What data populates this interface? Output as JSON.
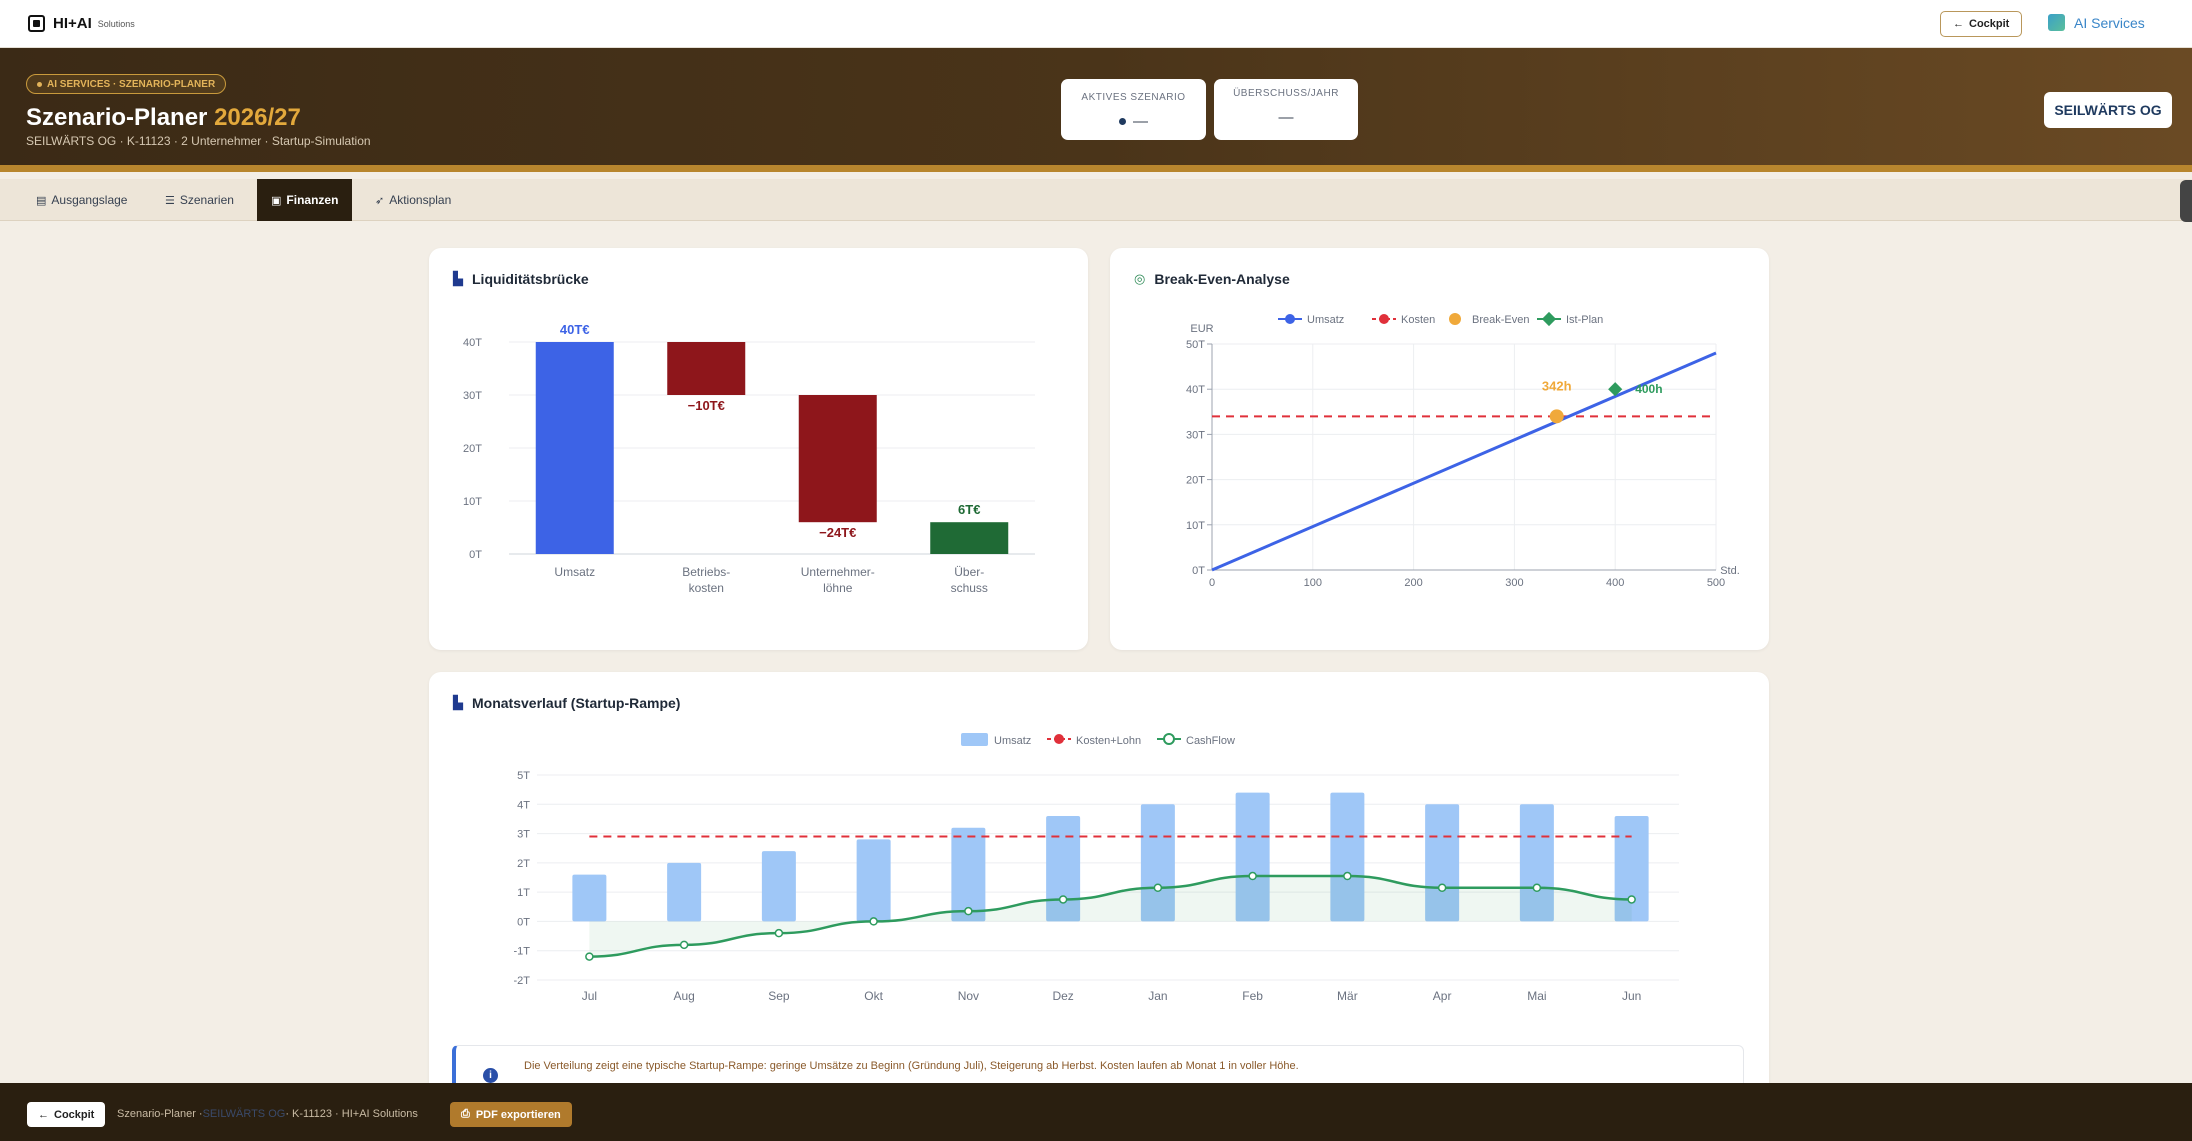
{
  "topbar": {
    "logo_text": "HI+AI",
    "logo_sub": "Solutions",
    "cockpit_label": "Cockpit",
    "ai_services_label": "AI Services"
  },
  "hero": {
    "badge": "AI SERVICES · SZENARIO-PLANER",
    "title": "Szenario-Planer",
    "year": "2026/27",
    "subtitle": "SEILWÄRTS OG · K-11123 · 2 Unternehmer · Startup-Simulation",
    "kpi_active_label": "AKTIVES SZENARIO",
    "kpi_active_value": "—",
    "kpi_surplus_label": "ÜBERSCHUSS/JAHR",
    "kpi_surplus_value": "—",
    "company_button": "SEILWÄRTS OG"
  },
  "tabs": [
    {
      "label": "Ausgangslage",
      "icon": "clipboard-icon"
    },
    {
      "label": "Szenarien",
      "icon": "sliders-icon"
    },
    {
      "label": "Finanzen",
      "icon": "wallet-icon"
    },
    {
      "label": "Aktionsplan",
      "icon": "rocket-icon"
    }
  ],
  "colors": {
    "blue": "#3d63e6",
    "red": "#8e161b",
    "green": "#1f6a35",
    "orange": "#f0a93a",
    "line_green": "#2e9b5e",
    "dashed_red": "#e0303a",
    "bar_light_blue": "#9fc7f7"
  },
  "chart_data": [
    {
      "type": "bar",
      "title": "Liquiditätsbrücke",
      "categories": [
        [
          "Umsatz"
        ],
        [
          "Betriebs-",
          "kosten"
        ],
        [
          "Unternehmer-",
          "löhne"
        ],
        [
          "Über-",
          "schuss"
        ]
      ],
      "waterfall": [
        {
          "start": 0,
          "end": 40,
          "label": "40T€"
        },
        {
          "start": 40,
          "end": 30,
          "label": "−10T€"
        },
        {
          "start": 30,
          "end": 6,
          "label": "−24T€"
        },
        {
          "start": 0,
          "end": 6,
          "label": "6T€"
        }
      ],
      "yticks": [
        "0T",
        "10T",
        "20T",
        "30T",
        "40T"
      ],
      "ylim": [
        0,
        40
      ]
    },
    {
      "type": "line",
      "title": "Break-Even-Analyse",
      "legend": [
        "Umsatz",
        "Kosten",
        "Break-Even",
        "Ist-Plan"
      ],
      "xlabel": "Std.",
      "ylabel": "EUR",
      "xticks": [
        "0",
        "100",
        "200",
        "300",
        "400",
        "500"
      ],
      "yticks": [
        "0T",
        "10T",
        "20T",
        "30T",
        "40T",
        "50T"
      ],
      "xlim": [
        0,
        500
      ],
      "ylim": [
        0,
        50
      ],
      "umsatz_line": [
        [
          0,
          0
        ],
        [
          500,
          48
        ]
      ],
      "kosten_level": 34,
      "break_even": {
        "x": 342,
        "y": 34,
        "label": "342h"
      },
      "ist_plan": {
        "x": 400,
        "y": 40,
        "label": "400h"
      }
    },
    {
      "type": "bar",
      "title": "Monatsverlauf (Startup-Rampe)",
      "legend": [
        "Umsatz",
        "Kosten+Lohn",
        "CashFlow"
      ],
      "categories": [
        "Jul",
        "Aug",
        "Sep",
        "Okt",
        "Nov",
        "Dez",
        "Jan",
        "Feb",
        "Mär",
        "Apr",
        "Mai",
        "Jun"
      ],
      "series": [
        {
          "name": "Umsatz",
          "values": [
            1.6,
            2.0,
            2.4,
            2.8,
            3.2,
            3.6,
            4.0,
            4.4,
            4.4,
            4.0,
            4.0,
            3.6
          ]
        },
        {
          "name": "Kosten+Lohn",
          "values": [
            2.9,
            2.9,
            2.9,
            2.9,
            2.9,
            2.9,
            2.9,
            2.9,
            2.9,
            2.9,
            2.9,
            2.9
          ]
        },
        {
          "name": "CashFlow",
          "values": [
            -1.2,
            -0.8,
            -0.4,
            0.0,
            0.35,
            0.75,
            1.15,
            1.55,
            1.55,
            1.15,
            1.15,
            0.75
          ]
        }
      ],
      "yticks": [
        "-2T",
        "-1T",
        "0T",
        "1T",
        "2T",
        "3T",
        "4T",
        "5T"
      ],
      "ylim": [
        -2,
        5
      ]
    }
  ],
  "info_text": "Die Verteilung zeigt eine typische Startup-Rampe: geringe Umsätze zu Beginn (Gründung Juli), Steigerung ab Herbst. Kosten laufen ab Monat 1 in voller Höhe.",
  "bottombar": {
    "cockpit_label": "Cockpit",
    "crumb_start": "Szenario-Planer · ",
    "crumb_company": "SEILWÄRTS OG",
    "crumb_end": " · K-11123 · HI+AI Solutions",
    "pdf_label": "PDF exportieren"
  }
}
